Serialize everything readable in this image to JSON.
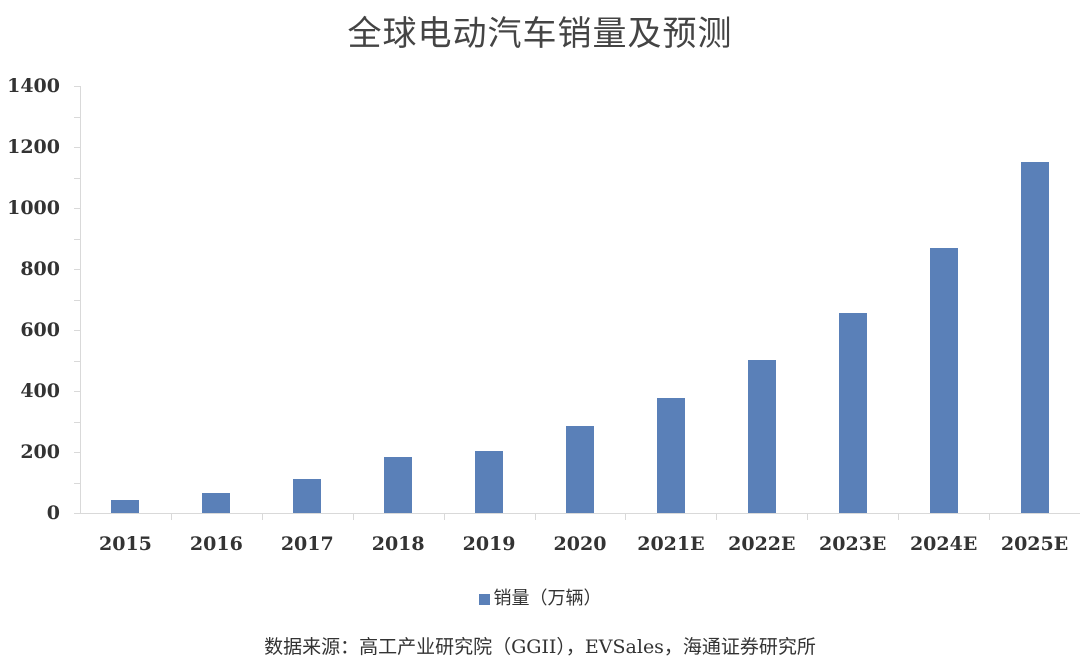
{
  "chart_data": {
    "type": "bar",
    "title": "全球电动汽车销量及预测",
    "categories": [
      "2015",
      "2016",
      "2017",
      "2018",
      "2019",
      "2020",
      "2021E",
      "2022E",
      "2023E",
      "2024E",
      "2025E"
    ],
    "series": [
      {
        "name": "销量（万辆）",
        "values": [
          42,
          65,
          112,
          184,
          203,
          286,
          378,
          502,
          656,
          870,
          1150
        ],
        "color": "#5a80b8"
      }
    ],
    "xlabel": "",
    "ylabel": "",
    "ylim": [
      0,
      1400
    ],
    "yticks": [
      0,
      200,
      400,
      600,
      800,
      1000,
      1200,
      1400
    ],
    "grid": false,
    "legend_position": "bottom"
  },
  "title": "全球电动汽车销量及预测",
  "legend": {
    "label": "销量（万辆）"
  },
  "source": "数据来源：高工产业研究院（GGII），EVSales，海通证券研究所"
}
